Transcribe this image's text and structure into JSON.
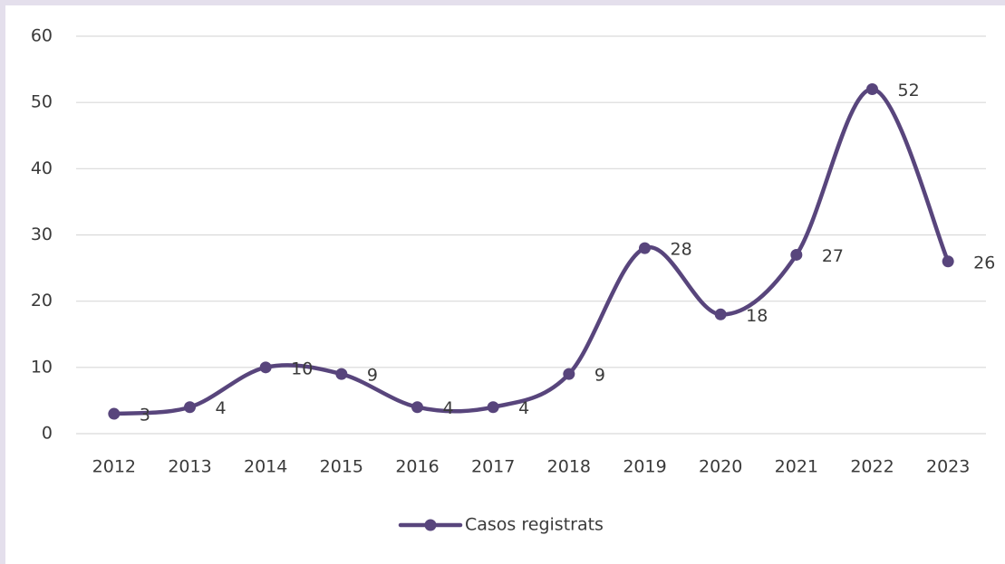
{
  "chart_data": {
    "type": "line",
    "categories": [
      "2012",
      "2013",
      "2014",
      "2015",
      "2016",
      "2017",
      "2018",
      "2019",
      "2020",
      "2021",
      "2022",
      "2023"
    ],
    "series": [
      {
        "name": "Casos registrats",
        "color": "#58457c",
        "values": [
          3,
          4,
          10,
          9,
          4,
          4,
          9,
          28,
          18,
          27,
          52,
          26
        ]
      }
    ],
    "ylim": [
      0,
      60
    ],
    "yticks": [
      0,
      10,
      20,
      30,
      40,
      50,
      60
    ],
    "grid": true,
    "smooth": true,
    "data_labels": true,
    "legend": "bottom"
  }
}
